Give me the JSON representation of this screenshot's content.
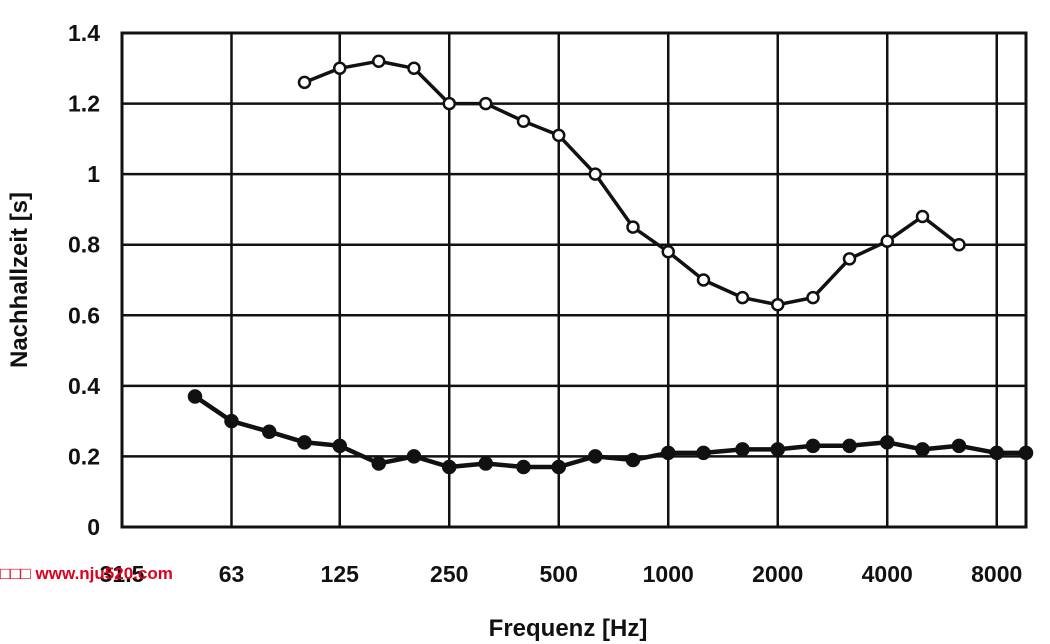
{
  "chart_data": {
    "type": "line",
    "xlabel": "Frequenz [Hz]",
    "ylabel": "Nachhallzeit [s]",
    "x_scale": "log (third-octave bands)",
    "ylim": [
      0,
      1.4
    ],
    "y_ticks": [
      "0",
      "0.2",
      "0.4",
      "0.6",
      "0.8",
      "1",
      "1.2",
      "1.4"
    ],
    "x_tick_labels": [
      "31.5",
      "63",
      "125",
      "250",
      "500",
      "1000",
      "2000",
      "4000",
      "8000"
    ],
    "grid": true,
    "legend": "none",
    "series": [
      {
        "marker": "open-circle",
        "color": "#111111",
        "x": [
          100,
          125,
          160,
          200,
          250,
          315,
          400,
          500,
          630,
          800,
          1000,
          1250,
          1600,
          2000,
          2500,
          3150,
          4000,
          5000,
          6300
        ],
        "y": [
          1.26,
          1.3,
          1.32,
          1.3,
          1.2,
          1.2,
          1.15,
          1.11,
          1.0,
          0.85,
          0.78,
          0.7,
          0.65,
          0.63,
          0.65,
          0.76,
          0.81,
          0.88,
          0.8
        ]
      },
      {
        "marker": "filled-circle",
        "color": "#111111",
        "x": [
          50,
          63,
          80,
          100,
          125,
          160,
          200,
          250,
          315,
          400,
          500,
          630,
          800,
          1000,
          1250,
          1600,
          2000,
          2500,
          3150,
          4000,
          5000,
          6300,
          8000,
          10000
        ],
        "y": [
          0.37,
          0.3,
          0.27,
          0.24,
          0.23,
          0.18,
          0.2,
          0.17,
          0.18,
          0.17,
          0.17,
          0.2,
          0.19,
          0.21,
          0.21,
          0.22,
          0.22,
          0.23,
          0.23,
          0.24,
          0.22,
          0.23,
          0.21,
          0.21
        ]
      }
    ]
  },
  "watermark": "□□□ www.nju520.com"
}
